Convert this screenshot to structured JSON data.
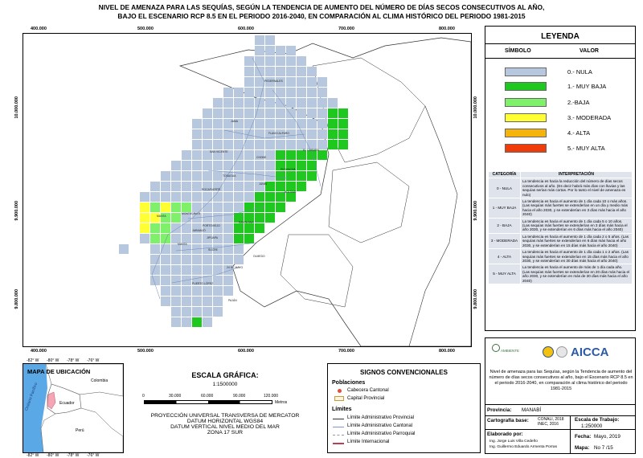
{
  "title": {
    "line1": "NIVEL DE AMENAZA PARA LAS SEQUÍAS, SEGÚN LA TENDENCIA DE AUMENTO DEL NÚMERO DE DÍAS SECOS CONSECUTIVOS AL AÑO,",
    "line2": "BAJO EL ESCENARIO RCP 8.5 EN EL PERIODO 2016-2040, EN COMPARACIÓN AL CLIMA HISTÓRICO DEL PERIODO 1981-2015"
  },
  "map": {
    "x_ticks": [
      "400.000",
      "500.000",
      "600.000",
      "700.000",
      "800.000"
    ],
    "y_ticks": [
      "10.000.000",
      "9.900.000",
      "9.800.000"
    ],
    "place_labels": [
      "PEDERNALES",
      "JAMA",
      "FLAVIO ALFARO",
      "EL CARMEN",
      "SAN VICENTE",
      "CHONE",
      "TOSAGUA",
      "ROCAFUERTE",
      "JUNÍN",
      "BOLÍVAR",
      "MANTA",
      "MONTECRISTI",
      "PORTOVIEJO",
      "SANTA ANA",
      "OLMEDO",
      "JIPIJAPA",
      "24 DE MAYO",
      "PUERTO LÓPEZ",
      "PAJÁN",
      "JARAMIJÓ",
      "SUCRE",
      "PICHINCHA",
      "MANTA"
    ],
    "colors": {
      "nula": "#b7c8de",
      "muy_baja": "#1ec81e",
      "baja": "#7ef06a",
      "moderada": "#ffff33",
      "alta": "#f6b30a",
      "muy_alta": "#f03c0a",
      "ocean": "#ffffff",
      "border": "#7a9acb"
    }
  },
  "legend": {
    "title": "LEYENDA",
    "col_symbol": "SÍMBOLO",
    "col_value": "VALOR",
    "items": [
      {
        "label": "0.- NULA",
        "color": "#b7c8de"
      },
      {
        "label": "1.- MUY BAJA",
        "color": "#1ec81e"
      },
      {
        "label": "2.-BAJA",
        "color": "#7ef06a"
      },
      {
        "label": "3.- MODERADA",
        "color": "#ffff33"
      },
      {
        "label": "4.- ALTA",
        "color": "#f6b30a"
      },
      {
        "label": "5.- MUY ALTA",
        "color": "#f03c0a"
      }
    ]
  },
  "interp": {
    "col_cat": "CATEGORÍA",
    "col_interp": "INTERPRETACIÓN",
    "rows": [
      {
        "cat": "0 - NULA",
        "text": "La tendencia es hacia la reducción del número de días secos consecutivos al año. (Es decir habrá más días con lluvias y las sequías serían más cortas. Por lo tanto el nivel de amenaza es nulo)"
      },
      {
        "cat": "1 - MUY BAJA",
        "text": "La tendencia es hacia el aumento de 1 día cada 10 o más años. (Las sequías más fuertes se extenderían en un día y medio más hacia el año 2030, y se extenderían en 3 días más hacia el año 2040)"
      },
      {
        "cat": "2 - BAJA",
        "text": "La tendencia es hacia el aumento de 1 día cada 5 o 10 años. (Las sequías más fuertes se extenderían en 3 días más hacia el año 2030, y se extenderían en 6 días más hacia el año 2040)"
      },
      {
        "cat": "3 - MODERADA",
        "text": "La tendencia es hacia el aumento de 1 día cada 2 o 5 años. (Las sequías más fuertes se extenderían en 6 días más hacia el año 2030, y se extenderían en 15 días más hacia el año 2040)"
      },
      {
        "cat": "4 - ALTA",
        "text": "La tendencia es hacia el aumento de 1 día cada 1 o 2 años. (Las sequías más fuertes se extenderían en 15 días más hacia el año 2030, y se extenderían en 30 días más hacia el año 2040)"
      },
      {
        "cat": "5 - MUY ALTA",
        "text": "La tendencia es hacia el aumento de más de 1 día cada año. (Las sequías más fuertes se extenderían en 20 días más hacia el año 2030, y se extenderían en más de 30 días más hacia el año 2040)"
      }
    ]
  },
  "inset": {
    "title": "MAPA DE UBICACIÓN",
    "labels": {
      "colombia": "Colombia",
      "ecuador": "Ecuador",
      "peru": "Perú",
      "ocean": "Océano Pacífico"
    },
    "x_ticks_top": [
      "-82° W",
      "-80° W",
      "-78° W",
      "-76° W"
    ],
    "x_ticks_bottom": [
      "-82° W",
      "-80° W",
      "-78° W",
      "-76° W"
    ]
  },
  "scale": {
    "title": "ESCALA GRÁFICA:",
    "ratio": "1:1500000",
    "ticks": [
      "0",
      "30.000",
      "60.000",
      "90.000",
      "120.000"
    ],
    "unit": "Metros",
    "projection": [
      "PROYECCIÓN UNIVERSAL TRANSVERSA DE MERCATOR",
      "DATUM HORIZONTAL WGS84",
      "DATUM VERTICAL NIVEL MEDIO DEL MAR",
      "ZONA 17 SUR"
    ]
  },
  "signos": {
    "title": "SIGNOS CONVENCIONALES",
    "poblaciones": "Poblaciones",
    "cabecera": "Cabecera Cantonal",
    "capital": "Capital Provincial",
    "limites": "Límites",
    "lim_items": [
      "Límite Administrativo Provincial",
      "Límite Administrativo Cantonal",
      "Límite Administrativo Parroquial",
      "Límite Internacional"
    ]
  },
  "credits": {
    "org_name": "AICCA",
    "logo_small": "AMBIENTE",
    "description": "Nivel de amenaza para las Sequías, según la Tendencia de aumento del número de días secos consecutivos al año, bajo el Escenario RCP 8.5 en el periodo 2016-2040, en comparación al clima histórico del periodo 1981-2015",
    "provincia_label": "Provincia:",
    "provincia_value": "MANABÍ",
    "cart_label": "Cartografía base:",
    "cart_value": "CONALI, 2018 INEC, 2016",
    "escala_label": "Escala de Trabajo:",
    "escala_value": "1:250000",
    "elab_label": "Elaborado por:",
    "elab_names": [
      "Ing. Jorge Luis Villa Cedeño",
      "Ing. Guillermo Eduardo Armenta Porras"
    ],
    "fecha_label": "Fecha:",
    "fecha_value": "Mayo, 2019",
    "mapa_label": "Mapa:",
    "mapa_value": "No 7 /15"
  }
}
